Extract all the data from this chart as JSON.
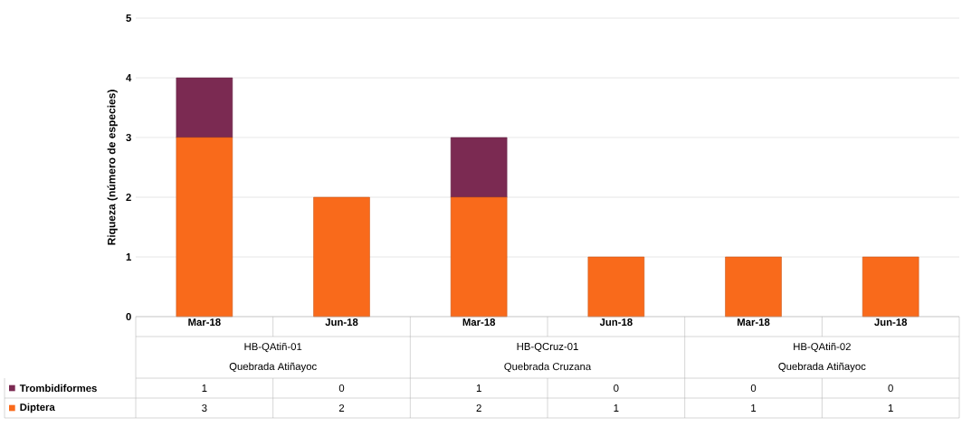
{
  "chart_data": {
    "type": "bar",
    "stacked": true,
    "ylabel": "Riqueza (número de especies)",
    "categories": [
      "Mar-18",
      "Jun-18",
      "Mar-18",
      "Jun-18",
      "Mar-18",
      "Jun-18"
    ],
    "series": [
      {
        "name": "Diptera",
        "color": "#f96a1b",
        "values": [
          3,
          2,
          2,
          1,
          1,
          1
        ]
      },
      {
        "name": "Trombidiformes",
        "color": "#7b2a52",
        "values": [
          1,
          0,
          1,
          0,
          0,
          0
        ]
      }
    ],
    "annotations": [
      "HB-QAtiñ-01",
      "Quebrada Atiñayoc",
      "HB-QCruz-01",
      "Quebrada Cruzana",
      "HB-QAtiñ-02",
      "Quebrada Atiñayoc"
    ],
    "ylim": [
      0,
      5
    ],
    "yticks": [
      0,
      1,
      2,
      3,
      4,
      5
    ],
    "grid": "y",
    "legend": "bottom left",
    "data_labels": true
  }
}
